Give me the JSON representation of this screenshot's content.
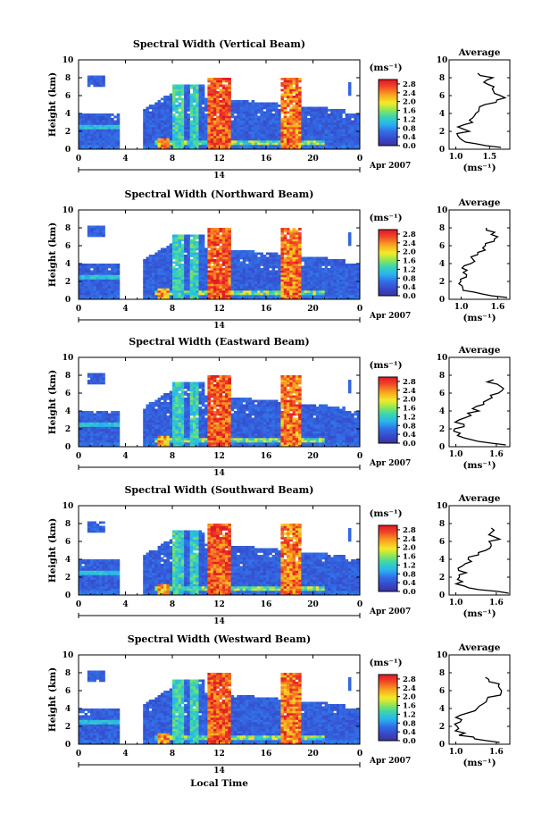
{
  "xaxis_title": "Local Time",
  "date_label": "Apr 2007",
  "day_label": "14",
  "unit_label": "(ms⁻¹)",
  "chart_data": [
    {
      "type": "heatmap",
      "title": "Spectral Width (Vertical Beam)",
      "ylabel": "Height (km)",
      "x_ticks": [
        "0",
        "4",
        "8",
        "12",
        "16",
        "20",
        "0"
      ],
      "y_ticks": [
        "0",
        "2",
        "4",
        "6",
        "8",
        "10"
      ],
      "xlim": [
        0,
        24
      ],
      "ylim": [
        0,
        10
      ],
      "colorbar": {
        "ticks": [
          "0.0",
          "0.4",
          "0.8",
          "1.2",
          "1.6",
          "2.0",
          "2.4",
          "2.8"
        ],
        "range": [
          0,
          3.0
        ]
      },
      "profile": {
        "title": "Average",
        "x_ticks": [
          "1.0",
          "1.5"
        ],
        "xlabel": "(ms⁻¹)",
        "y_ticks": [
          "0",
          "2",
          "4",
          "6",
          "8",
          "10"
        ],
        "xlim": [
          0.9,
          1.8
        ],
        "ylim": [
          0,
          10
        ],
        "heights": [
          0.2,
          0.6,
          1.0,
          1.5,
          2.0,
          2.5,
          3.0,
          3.5,
          4.0,
          4.5,
          5.0,
          5.5,
          6.0,
          6.5,
          7.0,
          7.5,
          8.0,
          8.5
        ],
        "values": [
          1.7,
          1.35,
          1.1,
          1.05,
          1.15,
          1.08,
          1.2,
          1.25,
          1.3,
          1.32,
          1.45,
          1.6,
          1.7,
          1.55,
          1.6,
          1.45,
          1.5,
          1.35
        ]
      }
    },
    {
      "type": "heatmap",
      "title": "Spectral Width (Northward Beam)",
      "ylabel": "Height (km)",
      "x_ticks": [
        "0",
        "4",
        "8",
        "12",
        "16",
        "20",
        "0"
      ],
      "y_ticks": [
        "0",
        "2",
        "4",
        "6",
        "8",
        "10"
      ],
      "xlim": [
        0,
        24
      ],
      "ylim": [
        0,
        10
      ],
      "colorbar": {
        "ticks": [
          "0.0",
          "0.4",
          "0.8",
          "1.2",
          "1.6",
          "2.0",
          "2.4",
          "2.8"
        ],
        "range": [
          0,
          3.0
        ]
      },
      "profile": {
        "title": "Average",
        "x_ticks": [
          "1.0",
          "1.6"
        ],
        "xlabel": "(ms⁻¹)",
        "y_ticks": [
          "0",
          "2",
          "4",
          "6",
          "8",
          "10"
        ],
        "xlim": [
          0.8,
          1.8
        ],
        "ylim": [
          0,
          10
        ],
        "heights": [
          0.2,
          0.6,
          1.0,
          1.5,
          2.0,
          2.5,
          3.0,
          3.5,
          4.0,
          4.5,
          5.0,
          5.5,
          6.0,
          6.5,
          7.0,
          7.5,
          8.0
        ],
        "values": [
          1.75,
          1.3,
          1.05,
          1.0,
          0.98,
          1.1,
          1.0,
          1.05,
          1.15,
          1.2,
          1.3,
          1.35,
          1.45,
          1.5,
          1.55,
          1.5,
          1.45
        ]
      }
    },
    {
      "type": "heatmap",
      "title": "Spectral Width (Eastward Beam)",
      "ylabel": "Height (km)",
      "x_ticks": [
        "0",
        "4",
        "8",
        "12",
        "16",
        "20",
        "0"
      ],
      "y_ticks": [
        "0",
        "2",
        "4",
        "6",
        "8",
        "10"
      ],
      "xlim": [
        0,
        24
      ],
      "ylim": [
        0,
        10
      ],
      "colorbar": {
        "ticks": [
          "0.0",
          "0.4",
          "0.8",
          "1.2",
          "1.6",
          "2.0",
          "2.4",
          "2.8"
        ],
        "range": [
          0,
          3.0
        ]
      },
      "profile": {
        "title": "Average",
        "x_ticks": [
          "1.0",
          "1.6"
        ],
        "xlabel": "(ms⁻¹)",
        "y_ticks": [
          "0",
          "2",
          "4",
          "6",
          "8",
          "10"
        ],
        "xlim": [
          0.9,
          1.8
        ],
        "ylim": [
          0,
          10
        ],
        "heights": [
          0.2,
          0.6,
          1.0,
          1.5,
          2.0,
          2.5,
          3.0,
          3.5,
          4.0,
          4.5,
          5.0,
          5.5,
          6.0,
          6.5,
          7.0,
          7.5
        ],
        "values": [
          1.7,
          1.3,
          1.1,
          1.05,
          1.0,
          1.1,
          1.05,
          1.2,
          1.3,
          1.35,
          1.4,
          1.55,
          1.6,
          1.65,
          1.6,
          1.5
        ]
      }
    },
    {
      "type": "heatmap",
      "title": "Spectral Width (Southward Beam)",
      "ylabel": "Height (km)",
      "x_ticks": [
        "0",
        "4",
        "8",
        "12",
        "16",
        "20",
        "0"
      ],
      "y_ticks": [
        "0",
        "2",
        "4",
        "6",
        "8",
        "10"
      ],
      "xlim": [
        0,
        24
      ],
      "ylim": [
        0,
        10
      ],
      "colorbar": {
        "ticks": [
          "0.0",
          "0.4",
          "0.8",
          "1.2",
          "1.6",
          "2.0",
          "2.4",
          "2.8"
        ],
        "range": [
          0,
          3.0
        ]
      },
      "profile": {
        "title": "Average",
        "x_ticks": [
          "1.0",
          "1.6"
        ],
        "xlabel": "(ms⁻¹)",
        "y_ticks": [
          "0",
          "2",
          "4",
          "6",
          "8",
          "10"
        ],
        "xlim": [
          0.9,
          1.8
        ],
        "ylim": [
          0,
          10
        ],
        "heights": [
          0.2,
          0.6,
          1.0,
          1.5,
          2.0,
          2.5,
          3.0,
          3.5,
          4.0,
          4.5,
          5.0,
          5.5,
          6.0,
          6.5,
          7.0,
          7.5
        ],
        "values": [
          1.75,
          1.35,
          1.1,
          1.05,
          1.0,
          1.1,
          1.05,
          1.15,
          1.2,
          1.3,
          1.4,
          1.5,
          1.55,
          1.6,
          1.55,
          1.5
        ]
      }
    },
    {
      "type": "heatmap",
      "title": "Spectral Width (Westward Beam)",
      "ylabel": "Height (km)",
      "x_ticks": [
        "0",
        "4",
        "8",
        "12",
        "16",
        "20",
        "0"
      ],
      "y_ticks": [
        "0",
        "2",
        "4",
        "6",
        "8",
        "10"
      ],
      "xlim": [
        0,
        24
      ],
      "ylim": [
        0,
        10
      ],
      "colorbar": {
        "ticks": [
          "0.0",
          "0.4",
          "0.8",
          "1.2",
          "1.6",
          "2.0",
          "2.4",
          "2.8"
        ],
        "range": [
          0,
          3.0
        ]
      },
      "profile": {
        "title": "Average",
        "x_ticks": [
          "1.0",
          "1.6"
        ],
        "xlabel": "(ms⁻¹)",
        "y_ticks": [
          "0",
          "2",
          "4",
          "6",
          "8",
          "10"
        ],
        "xlim": [
          0.9,
          1.8
        ],
        "ylim": [
          0,
          10
        ],
        "heights": [
          0.2,
          0.6,
          1.0,
          1.5,
          2.0,
          2.5,
          3.0,
          3.5,
          4.0,
          4.5,
          5.0,
          5.5,
          6.0,
          6.5,
          7.0,
          7.5
        ],
        "values": [
          1.7,
          1.3,
          1.1,
          1.05,
          1.0,
          1.08,
          1.05,
          1.2,
          1.3,
          1.4,
          1.5,
          1.6,
          1.65,
          1.6,
          1.55,
          1.45
        ]
      }
    }
  ]
}
